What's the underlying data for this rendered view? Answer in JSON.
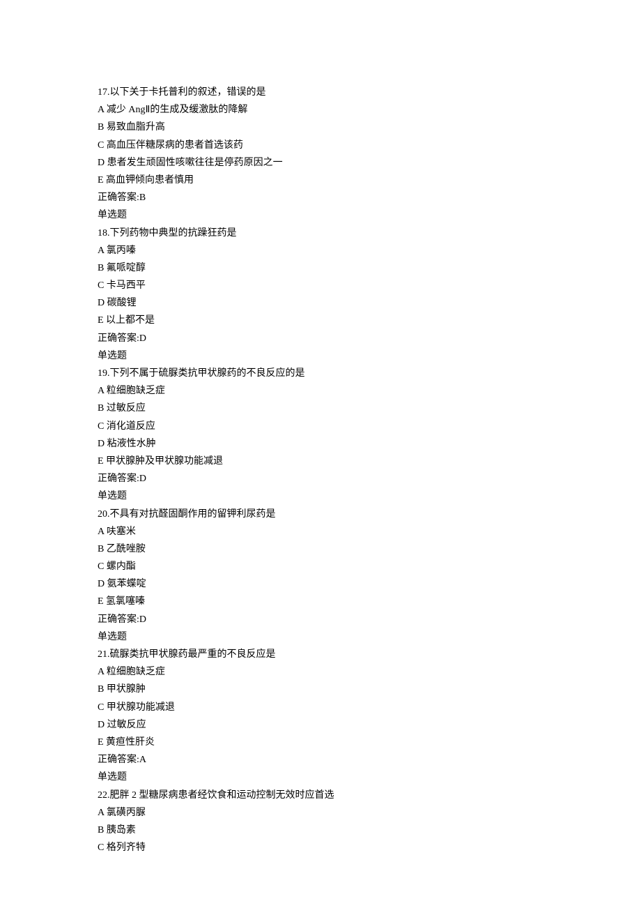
{
  "text_color": "#000000",
  "background_color": "#ffffff",
  "font_size": 14,
  "font_family": "SimSun",
  "questions": [
    {
      "number": "17.",
      "stem": "以下关于卡托普利的叙述，错误的是",
      "options": [
        "A 减少 AngⅡ的生成及缓激肽的降解",
        "B 易致血脂升高",
        "C 高血压伴糖尿病的患者首选该药",
        "D 患者发生顽固性咳嗽往往是停药原因之一",
        "E 高血钾倾向患者慎用"
      ],
      "answer": "正确答案:B",
      "type": "单选题"
    },
    {
      "number": "18.",
      "stem": "下列药物中典型的抗躁狂药是",
      "options": [
        "A 氯丙嗪",
        "B 氟哌啶醇",
        "C 卡马西平",
        "D 碳酸锂",
        "E 以上都不是"
      ],
      "answer": "正确答案:D",
      "type": "单选题"
    },
    {
      "number": "19.",
      "stem": "下列不属于硫脲类抗甲状腺药的不良反应的是",
      "options": [
        "A 粒细胞缺乏症",
        "B 过敏反应",
        "C 消化道反应",
        "D 粘液性水肿",
        "E 甲状腺肿及甲状腺功能减退"
      ],
      "answer": "正确答案:D",
      "type": "单选题"
    },
    {
      "number": "20.",
      "stem": "不具有对抗醛固酮作用的留钾利尿药是",
      "options": [
        "A 呋塞米",
        "B 乙酰唑胺",
        "C 螺内酯",
        "D 氨苯蝶啶",
        "E 氢氯噻嗪"
      ],
      "answer": "正确答案:D",
      "type": "单选题"
    },
    {
      "number": "21.",
      "stem": "硫脲类抗甲状腺药最严重的不良反应是",
      "options": [
        "A 粒细胞缺乏症",
        "B 甲状腺肿",
        "C 甲状腺功能减退",
        "D 过敏反应",
        "E 黄疸性肝炎"
      ],
      "answer": "正确答案:A",
      "type": "单选题"
    },
    {
      "number": "22.",
      "stem": "肥胖 2 型糖尿病患者经饮食和运动控制无效时应首选",
      "options": [
        "A 氯磺丙脲",
        "B 胰岛素",
        "C 格列齐特"
      ],
      "answer": "",
      "type": ""
    }
  ]
}
